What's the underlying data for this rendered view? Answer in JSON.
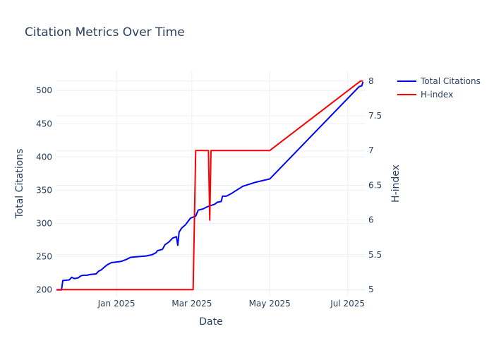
{
  "chart_data": {
    "type": "line",
    "title": "Citation Metrics Over Time",
    "xlabel": "Date",
    "ylabel_left": "Total Citations",
    "ylabel_right": "H-index",
    "x_ticks": [
      "Jan 2025",
      "Mar 2025",
      "May 2025",
      "Jul 2025"
    ],
    "x_tick_dates": [
      "2025-01-01",
      "2025-03-01",
      "2025-05-01",
      "2025-07-01"
    ],
    "x_range": [
      "2024-11-15",
      "2025-07-15"
    ],
    "y_left_ticks": [
      "200",
      "250",
      "300",
      "350",
      "400",
      "450",
      "500"
    ],
    "y_left_range": [
      190,
      530
    ],
    "y_right_ticks": [
      "5",
      "5.5",
      "6",
      "6.5",
      "7",
      "7.5",
      "8"
    ],
    "y_right_range": [
      4.9,
      8.15
    ],
    "grid": true,
    "legend_position": "top-right",
    "series": [
      {
        "name": "Total Citations",
        "axis": "left",
        "color": "#0000ff",
        "points": [
          [
            "2024-11-15",
            200
          ],
          [
            "2024-11-19",
            200
          ],
          [
            "2024-11-20",
            214
          ],
          [
            "2024-11-25",
            215
          ],
          [
            "2024-11-27",
            219
          ],
          [
            "2024-11-29",
            217
          ],
          [
            "2024-12-02",
            218
          ],
          [
            "2024-12-04",
            221
          ],
          [
            "2024-12-06",
            222
          ],
          [
            "2024-12-09",
            222
          ],
          [
            "2024-12-11",
            223
          ],
          [
            "2024-12-16",
            224
          ],
          [
            "2024-12-18",
            228
          ],
          [
            "2024-12-20",
            230
          ],
          [
            "2024-12-23",
            235
          ],
          [
            "2024-12-25",
            238
          ],
          [
            "2024-12-28",
            241
          ],
          [
            "2025-01-01",
            242
          ],
          [
            "2025-01-05",
            243
          ],
          [
            "2025-01-09",
            246
          ],
          [
            "2025-01-12",
            249
          ],
          [
            "2025-01-18",
            250
          ],
          [
            "2025-01-24",
            251
          ],
          [
            "2025-01-29",
            253
          ],
          [
            "2025-02-01",
            256
          ],
          [
            "2025-02-02",
            259
          ],
          [
            "2025-02-06",
            261
          ],
          [
            "2025-02-08",
            268
          ],
          [
            "2025-02-11",
            272
          ],
          [
            "2025-02-14",
            278
          ],
          [
            "2025-02-17",
            280
          ],
          [
            "2025-02-18",
            267
          ],
          [
            "2025-02-19",
            287
          ],
          [
            "2025-02-21",
            293
          ],
          [
            "2025-02-24",
            298
          ],
          [
            "2025-02-26",
            303
          ],
          [
            "2025-02-28",
            308
          ],
          [
            "2025-03-04",
            311
          ],
          [
            "2025-03-06",
            320
          ],
          [
            "2025-03-10",
            322
          ],
          [
            "2025-03-13",
            325
          ],
          [
            "2025-03-16",
            327
          ],
          [
            "2025-03-19",
            329
          ],
          [
            "2025-03-21",
            332
          ],
          [
            "2025-03-24",
            333
          ],
          [
            "2025-03-25",
            341
          ],
          [
            "2025-03-28",
            341
          ],
          [
            "2025-04-01",
            345
          ],
          [
            "2025-04-05",
            350
          ],
          [
            "2025-04-10",
            356
          ],
          [
            "2025-04-20",
            362
          ],
          [
            "2025-05-01",
            367
          ],
          [
            "2025-07-10",
            506
          ],
          [
            "2025-07-12",
            507
          ],
          [
            "2025-07-13",
            513
          ]
        ]
      },
      {
        "name": "H-index",
        "axis": "right",
        "color": "#ff0000",
        "points": [
          [
            "2024-11-15",
            5
          ],
          [
            "2025-03-02",
            5
          ],
          [
            "2025-03-04",
            7
          ],
          [
            "2025-03-14",
            7
          ],
          [
            "2025-03-15",
            6
          ],
          [
            "2025-03-16",
            7
          ],
          [
            "2025-05-01",
            7
          ],
          [
            "2025-07-11",
            8
          ],
          [
            "2025-07-13",
            8
          ]
        ]
      }
    ]
  }
}
